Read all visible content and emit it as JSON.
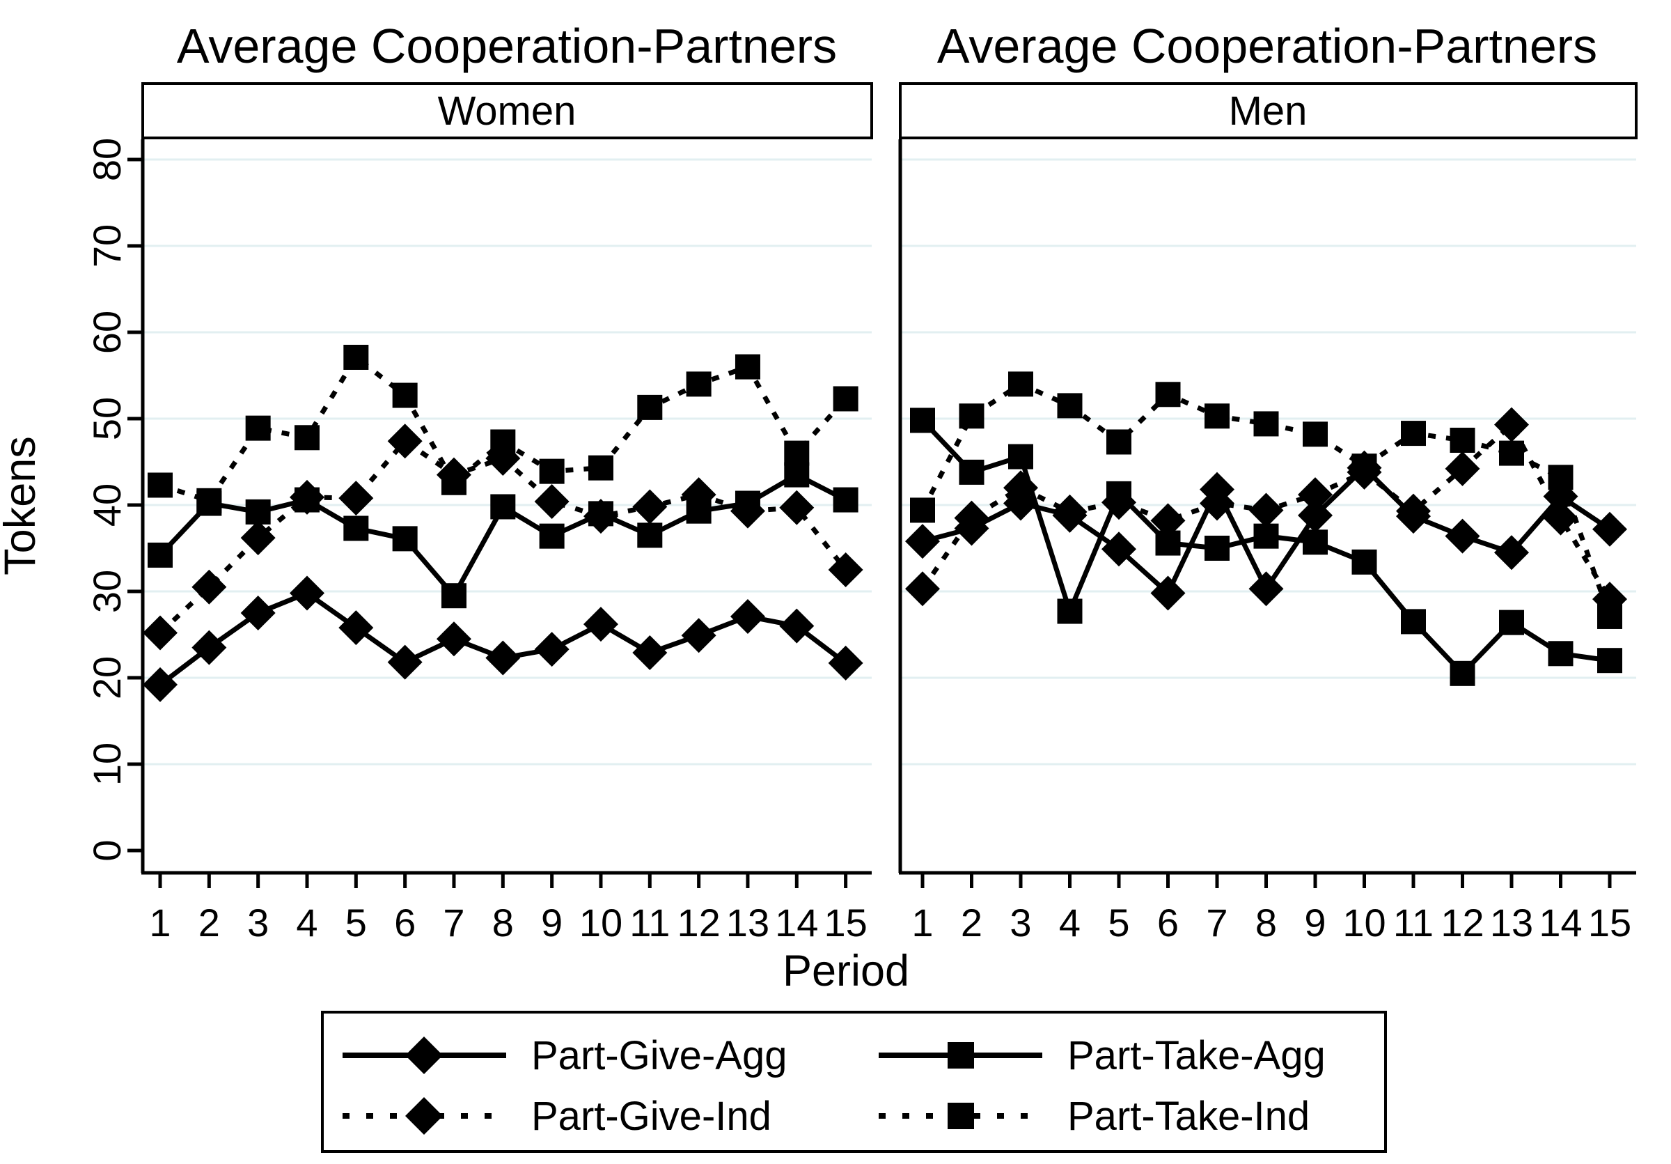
{
  "figure": {
    "title_left": "Average Cooperation-Partners",
    "title_right": "Average Cooperation-Partners",
    "ylabel": "Tokens",
    "xlabel": "Period"
  },
  "colors": {
    "series": "#000000",
    "gridline": "#e2eff1",
    "background": "#ffffff",
    "border": "#000000"
  },
  "chart_data": [
    {
      "type": "line",
      "panel": "Women",
      "x": [
        1,
        2,
        3,
        4,
        5,
        6,
        7,
        8,
        9,
        10,
        11,
        12,
        13,
        14,
        15
      ],
      "xlabel": "Period",
      "ylabel": "Tokens",
      "ylim": [
        0,
        86
      ],
      "yticks": [
        0,
        10,
        20,
        30,
        40,
        50,
        60,
        70,
        80
      ],
      "grid": true,
      "series": [
        {
          "name": "Part-Give-Agg",
          "marker": "diamond",
          "line": "solid",
          "values": [
            19.2,
            23.5,
            27.5,
            29.8,
            25.8,
            21.8,
            24.5,
            22.3,
            23.3,
            26.2,
            22.9,
            24.9,
            27.1,
            26.0,
            21.7
          ]
        },
        {
          "name": "Part-Take-Agg",
          "marker": "square",
          "line": "solid",
          "values": [
            34.2,
            40.2,
            39.2,
            40.6,
            37.3,
            36.1,
            29.5,
            39.8,
            36.4,
            39.0,
            36.5,
            39.3,
            40.2,
            43.5,
            40.6
          ]
        },
        {
          "name": "Part-Give-Ind",
          "marker": "diamond",
          "line": "dashed",
          "values": [
            25.2,
            30.5,
            36.2,
            40.9,
            40.8,
            47.4,
            43.5,
            45.4,
            40.4,
            38.7,
            39.8,
            41.2,
            39.3,
            39.7,
            32.5
          ]
        },
        {
          "name": "Part-Take-Ind",
          "marker": "square",
          "line": "dashed",
          "values": [
            42.3,
            40.5,
            48.9,
            47.8,
            57.1,
            52.7,
            42.6,
            47.3,
            43.9,
            44.3,
            51.3,
            54.0,
            56.0,
            46.0,
            52.3
          ]
        }
      ]
    },
    {
      "type": "line",
      "panel": "Men",
      "x": [
        1,
        2,
        3,
        4,
        5,
        6,
        7,
        8,
        9,
        10,
        11,
        12,
        13,
        14,
        15
      ],
      "xlabel": "Period",
      "ylabel": "Tokens",
      "ylim": [
        0,
        86
      ],
      "yticks": [
        0,
        10,
        20,
        30,
        40,
        50,
        60,
        70,
        80
      ],
      "grid": true,
      "series": [
        {
          "name": "Part-Give-Agg",
          "marker": "diamond",
          "line": "solid",
          "values": [
            35.8,
            37.3,
            40.2,
            38.8,
            34.9,
            29.8,
            41.8,
            30.3,
            38.8,
            44.3,
            38.7,
            36.4,
            34.5,
            41.0,
            37.2
          ]
        },
        {
          "name": "Part-Take-Agg",
          "marker": "square",
          "line": "solid",
          "values": [
            49.8,
            43.8,
            45.6,
            27.7,
            41.3,
            35.6,
            35.0,
            36.4,
            35.7,
            33.4,
            26.5,
            20.5,
            26.4,
            22.8,
            22.0
          ]
        },
        {
          "name": "Part-Give-Ind",
          "marker": "diamond",
          "line": "dashed",
          "values": [
            30.3,
            38.5,
            42.0,
            39.2,
            40.3,
            38.2,
            40.2,
            39.4,
            41.2,
            43.8,
            39.3,
            44.2,
            49.3,
            38.5,
            29.1
          ]
        },
        {
          "name": "Part-Take-Ind",
          "marker": "square",
          "line": "dashed",
          "values": [
            39.4,
            50.3,
            54.0,
            51.5,
            47.3,
            52.8,
            50.3,
            49.4,
            48.2,
            44.5,
            48.3,
            47.5,
            46.0,
            43.2,
            27.1
          ]
        }
      ]
    }
  ],
  "legend": {
    "items": [
      {
        "label": "Part-Give-Agg",
        "marker": "diamond",
        "line": "solid"
      },
      {
        "label": "Part-Take-Agg",
        "marker": "square",
        "line": "solid"
      },
      {
        "label": "Part-Give-Ind",
        "marker": "diamond",
        "line": "dashed"
      },
      {
        "label": "Part-Take-Ind",
        "marker": "square",
        "line": "dashed"
      }
    ]
  }
}
